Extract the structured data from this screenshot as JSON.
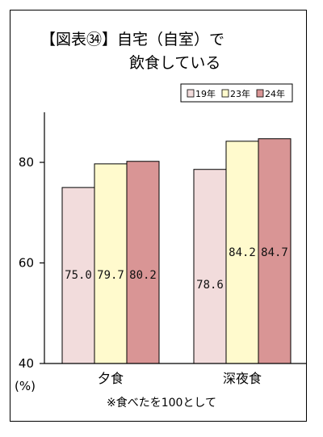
{
  "chart_data": {
    "type": "bar",
    "title_line1": "【図表㉞】自宅（自室）で",
    "title_line2": "飲食している",
    "categories": [
      "夕食",
      "深夜食"
    ],
    "series": [
      {
        "name": "19年",
        "values": [
          75.0,
          78.6
        ],
        "labels": [
          "75.0",
          "78.6"
        ],
        "color": "#f2dcdc"
      },
      {
        "name": "23年",
        "values": [
          79.7,
          84.2
        ],
        "labels": [
          "79.7",
          "84.2"
        ],
        "color": "#fffacd"
      },
      {
        "name": "24年",
        "values": [
          80.2,
          84.7
        ],
        "labels": [
          "80.2",
          "84.7"
        ],
        "color": "#d99595"
      }
    ],
    "ylim": [
      40,
      90
    ],
    "yticks": [
      "80",
      "60",
      "40"
    ],
    "ytick_values": [
      80,
      60,
      40
    ],
    "ylabel": "(%)",
    "note": "※食べたを100として",
    "legend_position": "top-right",
    "grid": false
  }
}
